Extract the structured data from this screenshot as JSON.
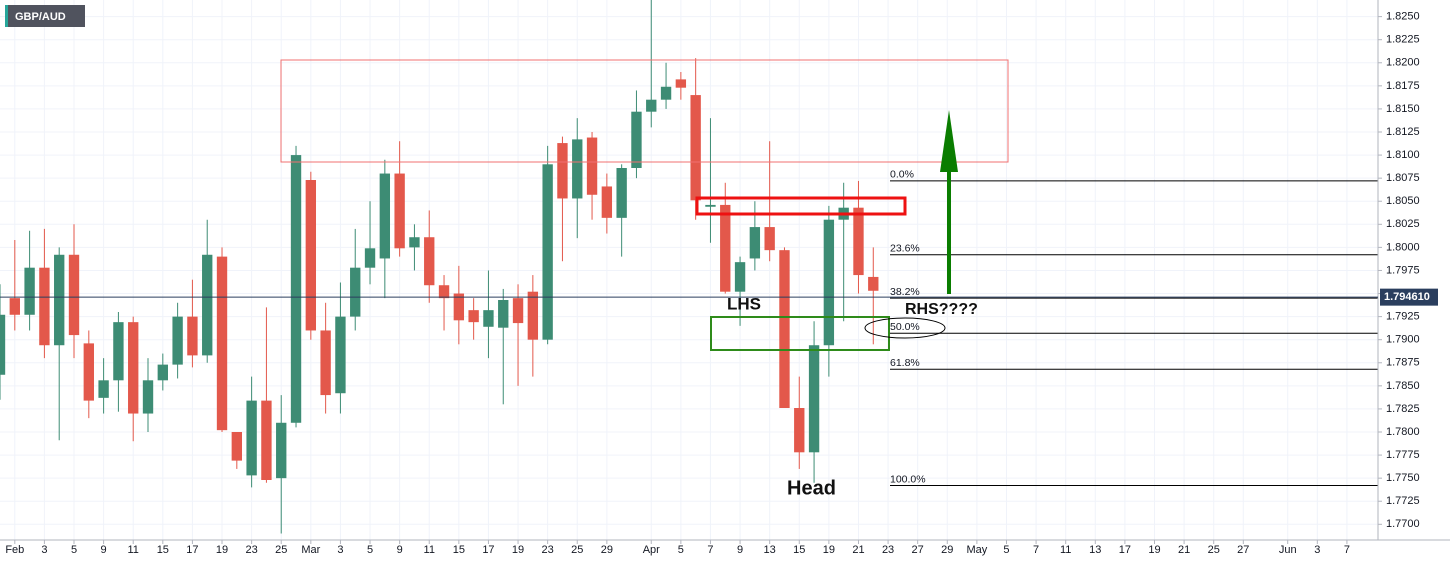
{
  "chart_data": {
    "type": "candlestick",
    "symbol": "GBP/AUD",
    "up_color": "#3d8c74",
    "down_color": "#e3584b",
    "grid": true,
    "xlim": [
      0,
      93.1
    ],
    "ylim": [
      1.7683,
      1.8268
    ],
    "open": [
      1.7862,
      1.7945,
      1.7927,
      1.7978,
      1.7894,
      1.7992,
      1.7896,
      1.7837,
      1.7856,
      1.7919,
      1.782,
      1.7856,
      1.7873,
      1.7925,
      1.7883,
      1.799,
      1.78,
      1.7753,
      1.7834,
      1.775,
      1.781,
      1.8073,
      1.791,
      1.7842,
      1.7925,
      1.7978,
      1.7988,
      1.808,
      1.8,
      1.8011,
      1.7959,
      1.795,
      1.7932,
      1.7914,
      1.7913,
      1.7945,
      1.7952,
      1.79,
      1.8113,
      1.8053,
      1.8119,
      1.8066,
      1.8032,
      1.8086,
      1.8147,
      1.816,
      1.8182,
      1.8165,
      1.8044,
      1.8046,
      1.7952,
      1.7988,
      1.8022,
      1.7997,
      1.7826,
      1.7778,
      1.7894,
      1.803,
      1.8043,
      1.7968
    ],
    "high": [
      1.796,
      1.8008,
      1.8018,
      1.802,
      1.8,
      1.8025,
      1.791,
      1.788,
      1.793,
      1.7925,
      1.788,
      1.7885,
      1.794,
      1.7965,
      1.803,
      1.8,
      1.78,
      1.786,
      1.7935,
      1.784,
      1.811,
      1.8082,
      1.794,
      1.7962,
      1.802,
      1.805,
      1.8095,
      1.8115,
      1.8025,
      1.804,
      1.797,
      1.798,
      1.7945,
      1.7975,
      1.7955,
      1.796,
      1.797,
      1.811,
      1.812,
      1.814,
      1.8125,
      1.808,
      1.809,
      1.817,
      1.8275,
      1.82,
      1.819,
      1.8205,
      1.814,
      1.807,
      1.799,
      1.805,
      1.8115,
      1.8,
      1.786,
      1.792,
      1.8045,
      1.807,
      1.8072,
      1.8
    ],
    "low": [
      1.7835,
      1.791,
      1.791,
      1.788,
      1.7791,
      1.788,
      1.7815,
      1.782,
      1.7822,
      1.779,
      1.78,
      1.7845,
      1.7858,
      1.787,
      1.7875,
      1.78,
      1.776,
      1.774,
      1.7745,
      1.769,
      1.7805,
      1.79,
      1.782,
      1.782,
      1.791,
      1.796,
      1.7945,
      1.799,
      1.7975,
      1.794,
      1.791,
      1.7895,
      1.79,
      1.788,
      1.783,
      1.785,
      1.786,
      1.7895,
      1.7985,
      1.801,
      1.803,
      1.8015,
      1.799,
      1.8075,
      1.813,
      1.815,
      1.816,
      1.803,
      1.8005,
      1.795,
      1.7915,
      1.7975,
      1.7985,
      1.7826,
      1.776,
      1.7745,
      1.786,
      1.792,
      1.795,
      1.7895
    ],
    "close": [
      1.7927,
      1.7927,
      1.7978,
      1.7894,
      1.7992,
      1.7905,
      1.7834,
      1.7856,
      1.7919,
      1.782,
      1.7856,
      1.7873,
      1.7925,
      1.7883,
      1.7992,
      1.7802,
      1.7769,
      1.7834,
      1.7748,
      1.781,
      1.81,
      1.791,
      1.784,
      1.7925,
      1.7978,
      1.7999,
      1.808,
      1.7999,
      1.8011,
      1.7959,
      1.7945,
      1.7921,
      1.7919,
      1.7932,
      1.7943,
      1.7918,
      1.79,
      1.809,
      1.8053,
      1.8117,
      1.8057,
      1.8032,
      1.8086,
      1.8147,
      1.816,
      1.8174,
      1.8173,
      1.8051,
      1.8046,
      1.7952,
      1.7984,
      1.8022,
      1.7997,
      1.7826,
      1.7778,
      1.7894,
      1.803,
      1.8043,
      1.797,
      1.7953
    ],
    "xticks": [
      {
        "value": 1,
        "label": "Feb"
      },
      {
        "value": 3,
        "label": "3"
      },
      {
        "value": 5,
        "label": "5"
      },
      {
        "value": 7,
        "label": "9"
      },
      {
        "value": 9,
        "label": "11"
      },
      {
        "value": 11,
        "label": "15"
      },
      {
        "value": 13,
        "label": "17"
      },
      {
        "value": 15,
        "label": "19"
      },
      {
        "value": 17,
        "label": "23"
      },
      {
        "value": 19,
        "label": "25"
      },
      {
        "value": 21,
        "label": "Mar"
      },
      {
        "value": 23,
        "label": "3"
      },
      {
        "value": 25,
        "label": "5"
      },
      {
        "value": 27,
        "label": "9"
      },
      {
        "value": 29,
        "label": "11"
      },
      {
        "value": 31,
        "label": "15"
      },
      {
        "value": 33,
        "label": "17"
      },
      {
        "value": 35,
        "label": "19"
      },
      {
        "value": 37,
        "label": "23"
      },
      {
        "value": 39,
        "label": "25"
      },
      {
        "value": 41,
        "label": "29"
      },
      {
        "value": 44,
        "label": "Apr"
      },
      {
        "value": 46,
        "label": "5"
      },
      {
        "value": 48,
        "label": "7"
      },
      {
        "value": 50,
        "label": "9"
      },
      {
        "value": 52,
        "label": "13"
      },
      {
        "value": 54,
        "label": "15"
      },
      {
        "value": 56,
        "label": "19"
      },
      {
        "value": 58,
        "label": "21"
      },
      {
        "value": 60,
        "label": "23"
      },
      {
        "value": 62,
        "label": "27"
      },
      {
        "value": 64,
        "label": "29"
      },
      {
        "value": 66,
        "label": "May"
      },
      {
        "value": 68,
        "label": "5"
      },
      {
        "value": 70,
        "label": "7"
      },
      {
        "value": 72,
        "label": "11"
      },
      {
        "value": 74,
        "label": "13"
      },
      {
        "value": 76,
        "label": "17"
      },
      {
        "value": 78,
        "label": "19"
      },
      {
        "value": 80,
        "label": "21"
      },
      {
        "value": 82,
        "label": "25"
      },
      {
        "value": 84,
        "label": "27"
      },
      {
        "value": 87,
        "label": "Jun"
      },
      {
        "value": 89,
        "label": "3"
      },
      {
        "value": 91,
        "label": "7"
      }
    ],
    "yticks": [
      {
        "value": 1.77,
        "label": "1.7700"
      },
      1.7725,
      {
        "value": 1.775,
        "label": "1.7750"
      },
      1.7775,
      {
        "value": 1.78,
        "label": "1.7800"
      },
      1.7825,
      {
        "value": 1.785,
        "label": "1.7850"
      },
      1.7875,
      {
        "value": 1.79,
        "label": "1.7900"
      },
      1.7925,
      {
        "value": 1.795,
        "label": "1.7950"
      },
      1.7975,
      {
        "value": 1.8,
        "label": "1.8000"
      },
      1.8025,
      {
        "value": 1.805,
        "label": "1.8050"
      },
      1.8075,
      {
        "value": 1.81,
        "label": "1.8100"
      },
      1.8125,
      {
        "value": 1.815,
        "label": "1.8150"
      },
      1.8175,
      {
        "value": 1.82,
        "label": "1.8200"
      },
      1.8225,
      {
        "value": 1.825,
        "label": "1.8250"
      }
    ],
    "last_price": {
      "value": 1.79461,
      "label": "1.794610"
    },
    "fibonacci": [
      {
        "label": "0.0%",
        "value": 1.8072
      },
      {
        "label": "23.6%",
        "value": 1.7992
      },
      {
        "label": "38.2%",
        "value": 1.7945
      },
      {
        "label": "50.0%",
        "value": 1.7907
      },
      {
        "label": "61.8%",
        "value": 1.7868
      },
      {
        "label": "100.0%",
        "value": 1.7742
      }
    ],
    "annotations": {
      "lhs": "LHS",
      "head": "Head",
      "rhs": "RHS????"
    }
  }
}
